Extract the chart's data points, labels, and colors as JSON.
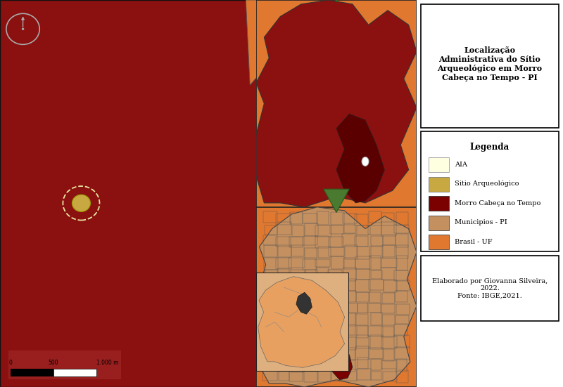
{
  "title": "Localização\nAdministrativa do Sítio\nArqueológico em Morro\nCabeça no Tempo - PI",
  "legend_title": "Legenda",
  "legend_items": [
    {
      "label": "AIA",
      "color": "#FEFEE0",
      "edgecolor": "#aaaaaa"
    },
    {
      "label": "Sitio Arqueológico",
      "color": "#C8A840",
      "edgecolor": "#888888"
    },
    {
      "label": "Morro Cabeça no Tempo",
      "color": "#7B0000",
      "edgecolor": "#444444"
    },
    {
      "label": "Municipios - PI",
      "color": "#C49060",
      "edgecolor": "#555555"
    },
    {
      "label": "Brasil - UF",
      "color": "#E07830",
      "edgecolor": "#555555"
    }
  ],
  "credit_text": "Elaborado por Giovanna Silveira,\n2022.\nFonte: IBGE,2021.",
  "main_bg_color": "#8B1010",
  "orange_bg_color": "#E07830",
  "pi_state_color": "#8B1010",
  "municipality_color": "#C49060",
  "brazil_inset_bg": "#DEB080",
  "arrow_green": "#4A7A30",
  "morro_highlight": "#7B0000",
  "site_color": "#C8A840",
  "north_circle_color": "#aaaaaa"
}
